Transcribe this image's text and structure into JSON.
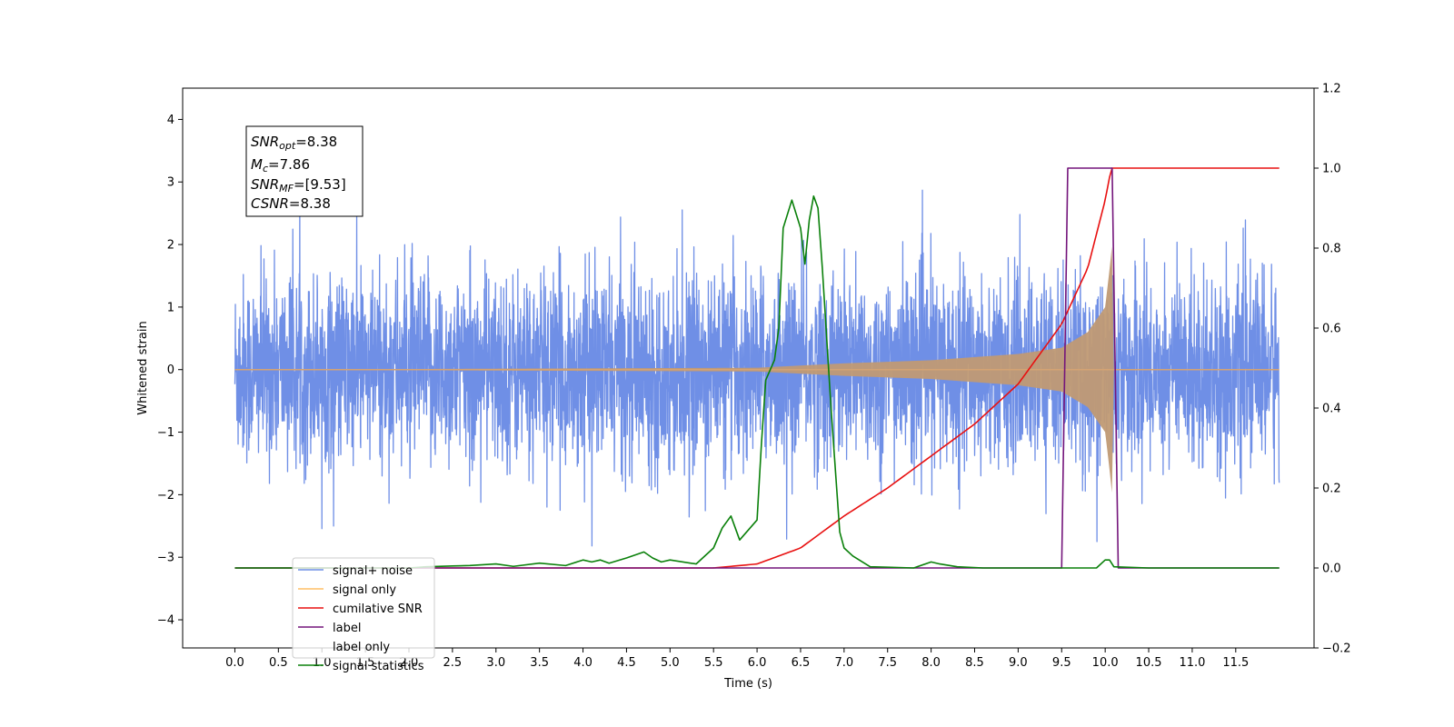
{
  "chart_data": {
    "type": "line",
    "xlabel": "Time (s)",
    "ylabel": "Whitened strain",
    "xlim": [
      -0.6,
      12.4
    ],
    "ylim": [
      -4.45,
      4.5
    ],
    "y2lim": [
      -0.2,
      1.2
    ],
    "x_ticks": [
      "0.0",
      "0.5",
      "1.0",
      "1.5",
      "2.0",
      "2.5",
      "3.0",
      "3.5",
      "4.0",
      "4.5",
      "5.0",
      "5.5",
      "6.0",
      "6.5",
      "7.0",
      "7.5",
      "8.0",
      "8.5",
      "9.0",
      "9.5",
      "10.0",
      "10.5",
      "11.0",
      "11.5"
    ],
    "y_ticks": [
      "4",
      "3",
      "2",
      "1",
      "0",
      "−1",
      "−2",
      "−3",
      "−4"
    ],
    "y2_ticks": [
      "1.2",
      "1.0",
      "0.8",
      "0.6",
      "0.4",
      "0.2",
      "0.0",
      "−0.2"
    ],
    "annotation": {
      "snr_opt": "=8.38",
      "mc": "=7.86",
      "snr_mf": "=[9.53]",
      "csnr": "=8.38"
    },
    "series": [
      {
        "name": "signal+ noise",
        "color": "#6f8fe6",
        "axis": "left",
        "description_stats": {
          "x_range": [
            0.0,
            12.0
          ],
          "noise_std": 0.75
        }
      },
      {
        "name": "signal only",
        "color": "#ffbf66",
        "axis": "left",
        "envelope": {
          "x": [
            0.0,
            6.0,
            7.0,
            8.0,
            9.0,
            9.5,
            9.8,
            10.0,
            10.05,
            10.08,
            10.1
          ],
          "y": [
            0.0,
            0.03,
            0.1,
            0.15,
            0.25,
            0.35,
            0.6,
            1.0,
            1.6,
            2.0,
            0.0
          ]
        }
      },
      {
        "name": "cumilative SNR",
        "color": "#e81010",
        "axis": "right",
        "x": [
          0.0,
          5.5,
          6.0,
          6.5,
          7.0,
          7.5,
          8.0,
          8.5,
          9.0,
          9.5,
          9.8,
          10.0,
          10.07,
          10.1,
          12.0
        ],
        "y": [
          0.0,
          0.0,
          0.01,
          0.05,
          0.13,
          0.2,
          0.28,
          0.36,
          0.46,
          0.61,
          0.75,
          0.92,
          1.0,
          1.0,
          1.0
        ]
      },
      {
        "name": "label",
        "color": "#74157b",
        "axis": "right",
        "x": [
          0.0,
          9.5,
          9.57,
          10.08,
          10.15,
          12.0
        ],
        "y": [
          0.0,
          0.0,
          1.0,
          1.0,
          0.0,
          0.0
        ]
      },
      {
        "name": "label only",
        "color": "#74157b",
        "axis": "right",
        "x": [],
        "y": []
      },
      {
        "name": "signal statistics",
        "color": "#0a800a",
        "axis": "right",
        "x": [
          0.0,
          2.0,
          2.2,
          2.5,
          2.7,
          3.0,
          3.2,
          3.5,
          3.8,
          4.0,
          4.1,
          4.2,
          4.3,
          4.5,
          4.7,
          4.8,
          4.9,
          5.0,
          5.3,
          5.5,
          5.6,
          5.7,
          5.8,
          6.0,
          6.05,
          6.1,
          6.2,
          6.25,
          6.3,
          6.4,
          6.5,
          6.55,
          6.6,
          6.65,
          6.7,
          6.75,
          6.85,
          6.95,
          7.0,
          7.1,
          7.3,
          7.5,
          7.8,
          8.0,
          8.1,
          8.3,
          8.6,
          9.0,
          9.5,
          9.9,
          10.0,
          10.05,
          10.1,
          10.5,
          12.0
        ],
        "y": [
          0.0,
          0.0,
          0.003,
          0.005,
          0.006,
          0.01,
          0.004,
          0.012,
          0.006,
          0.02,
          0.015,
          0.02,
          0.012,
          0.025,
          0.04,
          0.025,
          0.015,
          0.02,
          0.01,
          0.05,
          0.1,
          0.13,
          0.07,
          0.12,
          0.31,
          0.47,
          0.52,
          0.6,
          0.85,
          0.92,
          0.85,
          0.76,
          0.87,
          0.93,
          0.9,
          0.75,
          0.4,
          0.09,
          0.05,
          0.03,
          0.003,
          0.002,
          0.0,
          0.015,
          0.01,
          0.003,
          0.0,
          0.0,
          0.0,
          0.0,
          0.02,
          0.02,
          0.003,
          0.0,
          0.0
        ]
      }
    ],
    "legend_placement": "bottom-left"
  }
}
